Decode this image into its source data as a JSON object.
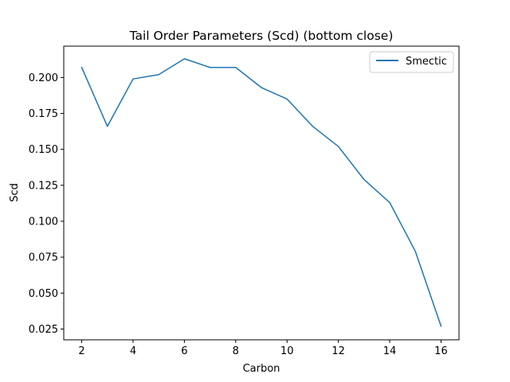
{
  "chart_data": {
    "type": "line",
    "title": "Tail Order Parameters (Scd) (bottom close)",
    "xlabel": "Carbon",
    "ylabel": "Scd",
    "xlim": [
      1.3,
      16.7
    ],
    "ylim": [
      0.0175,
      0.2218
    ],
    "xticks": [
      2,
      4,
      6,
      8,
      10,
      12,
      14,
      16
    ],
    "xtick_labels": [
      "2",
      "4",
      "6",
      "8",
      "10",
      "12",
      "14",
      "16"
    ],
    "yticks": [
      0.025,
      0.05,
      0.075,
      0.1,
      0.125,
      0.15,
      0.175,
      0.2
    ],
    "ytick_labels": [
      "0.025",
      "0.050",
      "0.075",
      "0.100",
      "0.125",
      "0.150",
      "0.175",
      "0.200"
    ],
    "grid": false,
    "legend_position": "top-right",
    "series": [
      {
        "name": "Smectic",
        "color": "#1f77b4",
        "x": [
          2,
          3,
          4,
          5,
          6,
          7,
          8,
          9,
          10,
          11,
          12,
          13,
          14,
          15,
          16
        ],
        "y": [
          0.207,
          0.166,
          0.199,
          0.202,
          0.213,
          0.207,
          0.207,
          0.193,
          0.185,
          0.166,
          0.152,
          0.129,
          0.113,
          0.079,
          0.027
        ]
      }
    ]
  }
}
